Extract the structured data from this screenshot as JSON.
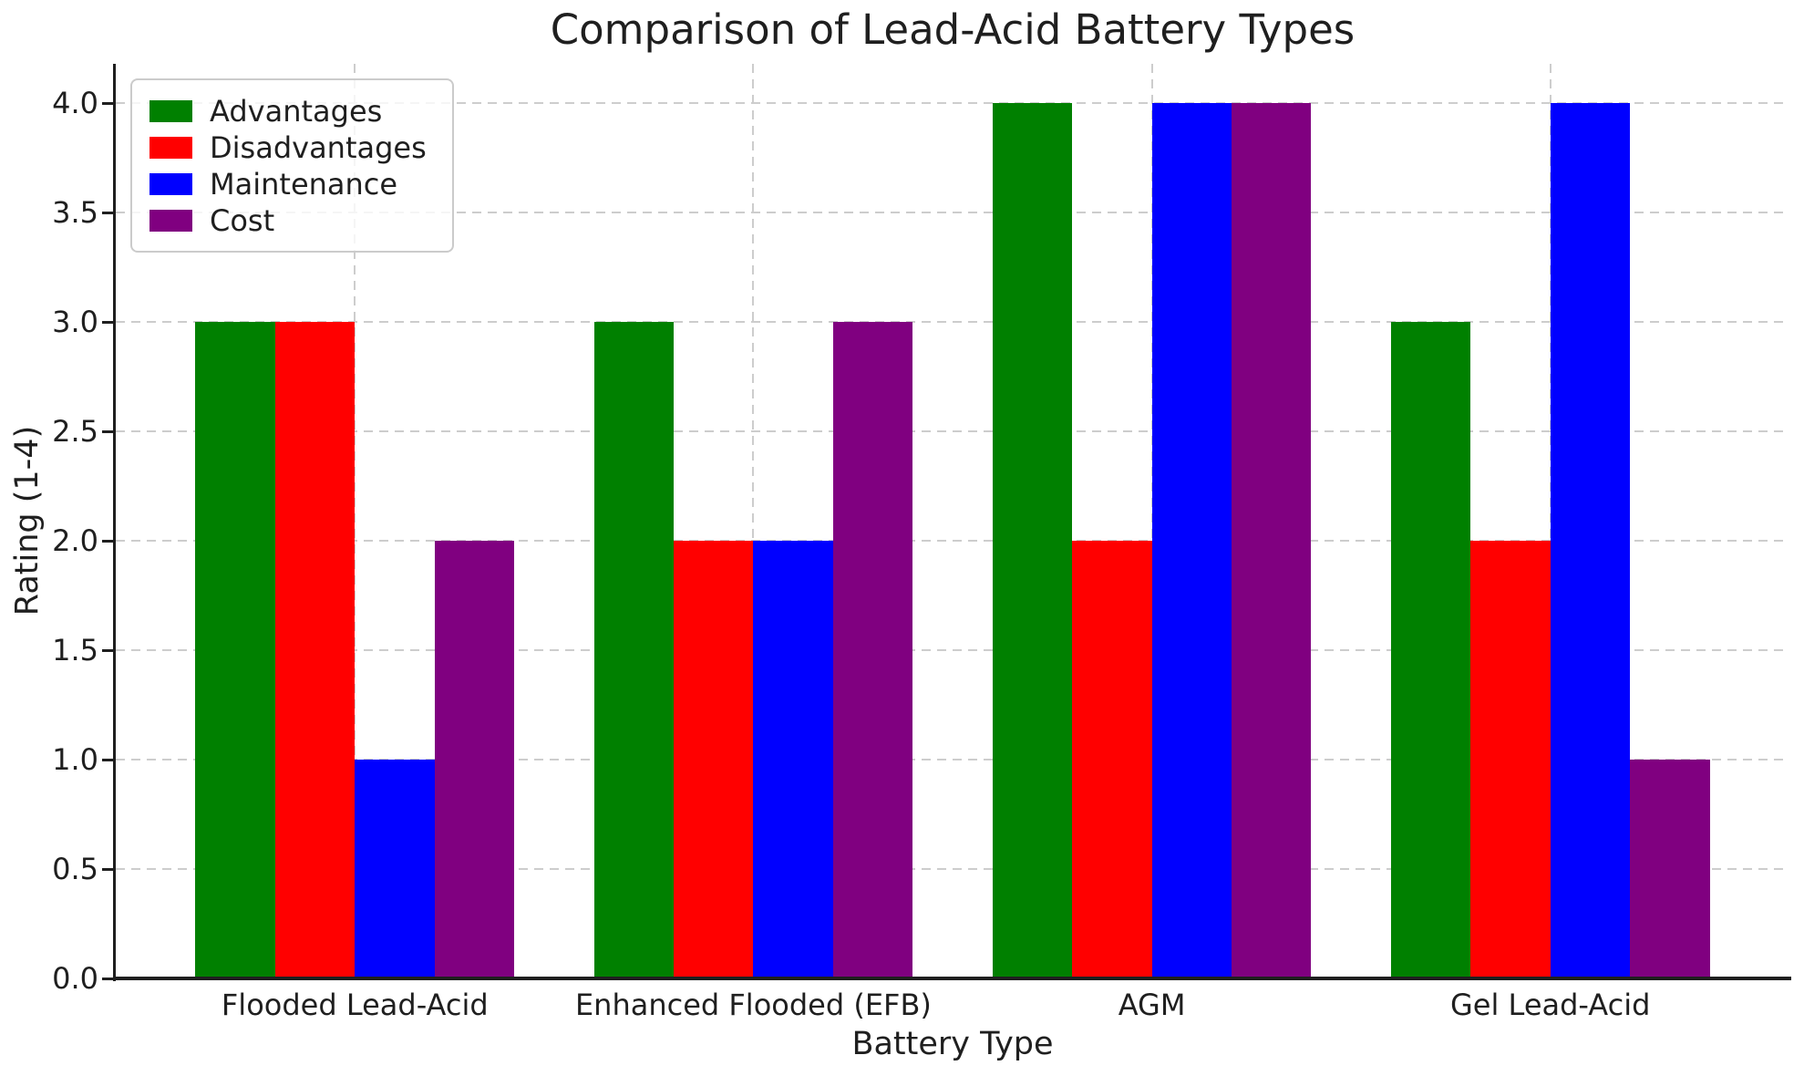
{
  "chart_data": {
    "type": "bar",
    "title": "Comparison of Lead-Acid Battery Types",
    "xlabel": "Battery Type",
    "ylabel": "Rating (1-4)",
    "categories": [
      "Flooded Lead-Acid",
      "Enhanced Flooded (EFB)",
      "AGM",
      "Gel Lead-Acid"
    ],
    "series": [
      {
        "name": "Advantages",
        "color": "#008000",
        "values": [
          3,
          3,
          4,
          3
        ]
      },
      {
        "name": "Disadvantages",
        "color": "#ff0000",
        "values": [
          3,
          2,
          2,
          2
        ]
      },
      {
        "name": "Maintenance",
        "color": "#0000ff",
        "values": [
          1,
          2,
          4,
          4
        ]
      },
      {
        "name": "Cost",
        "color": "#800080",
        "values": [
          2,
          3,
          4,
          1
        ]
      }
    ],
    "yticks": [
      "0.0",
      "0.5",
      "1.0",
      "1.5",
      "2.0",
      "2.5",
      "3.0",
      "3.5",
      "4.0"
    ],
    "ylim": [
      0,
      4.18
    ],
    "xlim": [
      -0.6,
      3.6
    ],
    "bar_width": 0.2,
    "grid": true,
    "grid_style": "dashed",
    "grid_color": "#cdcdcd",
    "spine_color": "#1f1f1f",
    "text_color": "#1f1f1f",
    "legend_position": "upper left"
  }
}
